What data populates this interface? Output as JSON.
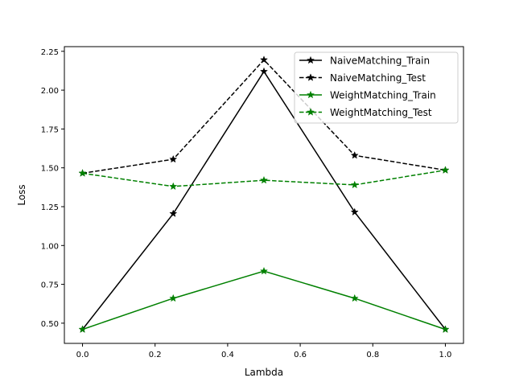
{
  "chart_data": {
    "type": "line",
    "title": "",
    "xlabel": "Lambda",
    "ylabel": "Loss",
    "xlim": [
      -0.05,
      1.05
    ],
    "ylim": [
      0.37,
      2.28
    ],
    "xticks": [
      0.0,
      0.2,
      0.4,
      0.6,
      0.8,
      1.0
    ],
    "xtick_labels": [
      "0.0",
      "0.2",
      "0.4",
      "0.6",
      "0.8",
      "1.0"
    ],
    "yticks": [
      0.5,
      0.75,
      1.0,
      1.25,
      1.5,
      1.75,
      2.0,
      2.25
    ],
    "ytick_labels": [
      "0.50",
      "0.75",
      "1.00",
      "1.25",
      "1.50",
      "1.75",
      "2.00",
      "2.25"
    ],
    "grid": false,
    "legend_position": "top-right",
    "x": [
      0.0,
      0.25,
      0.5,
      0.75,
      1.0
    ],
    "series": [
      {
        "name": "NaiveMatching_Train",
        "values": [
          0.46,
          1.205,
          2.12,
          1.215,
          0.46
        ],
        "color": "#000000",
        "dashed": false
      },
      {
        "name": "NaiveMatching_Test",
        "values": [
          1.465,
          1.555,
          2.195,
          1.58,
          1.485
        ],
        "color": "#000000",
        "dashed": true
      },
      {
        "name": "WeightMatching_Train",
        "values": [
          0.46,
          0.66,
          0.835,
          0.66,
          0.46
        ],
        "color": "#008000",
        "dashed": false
      },
      {
        "name": "WeightMatching_Test",
        "values": [
          1.465,
          1.38,
          1.42,
          1.39,
          1.485
        ],
        "color": "#008000",
        "dashed": true
      }
    ]
  }
}
